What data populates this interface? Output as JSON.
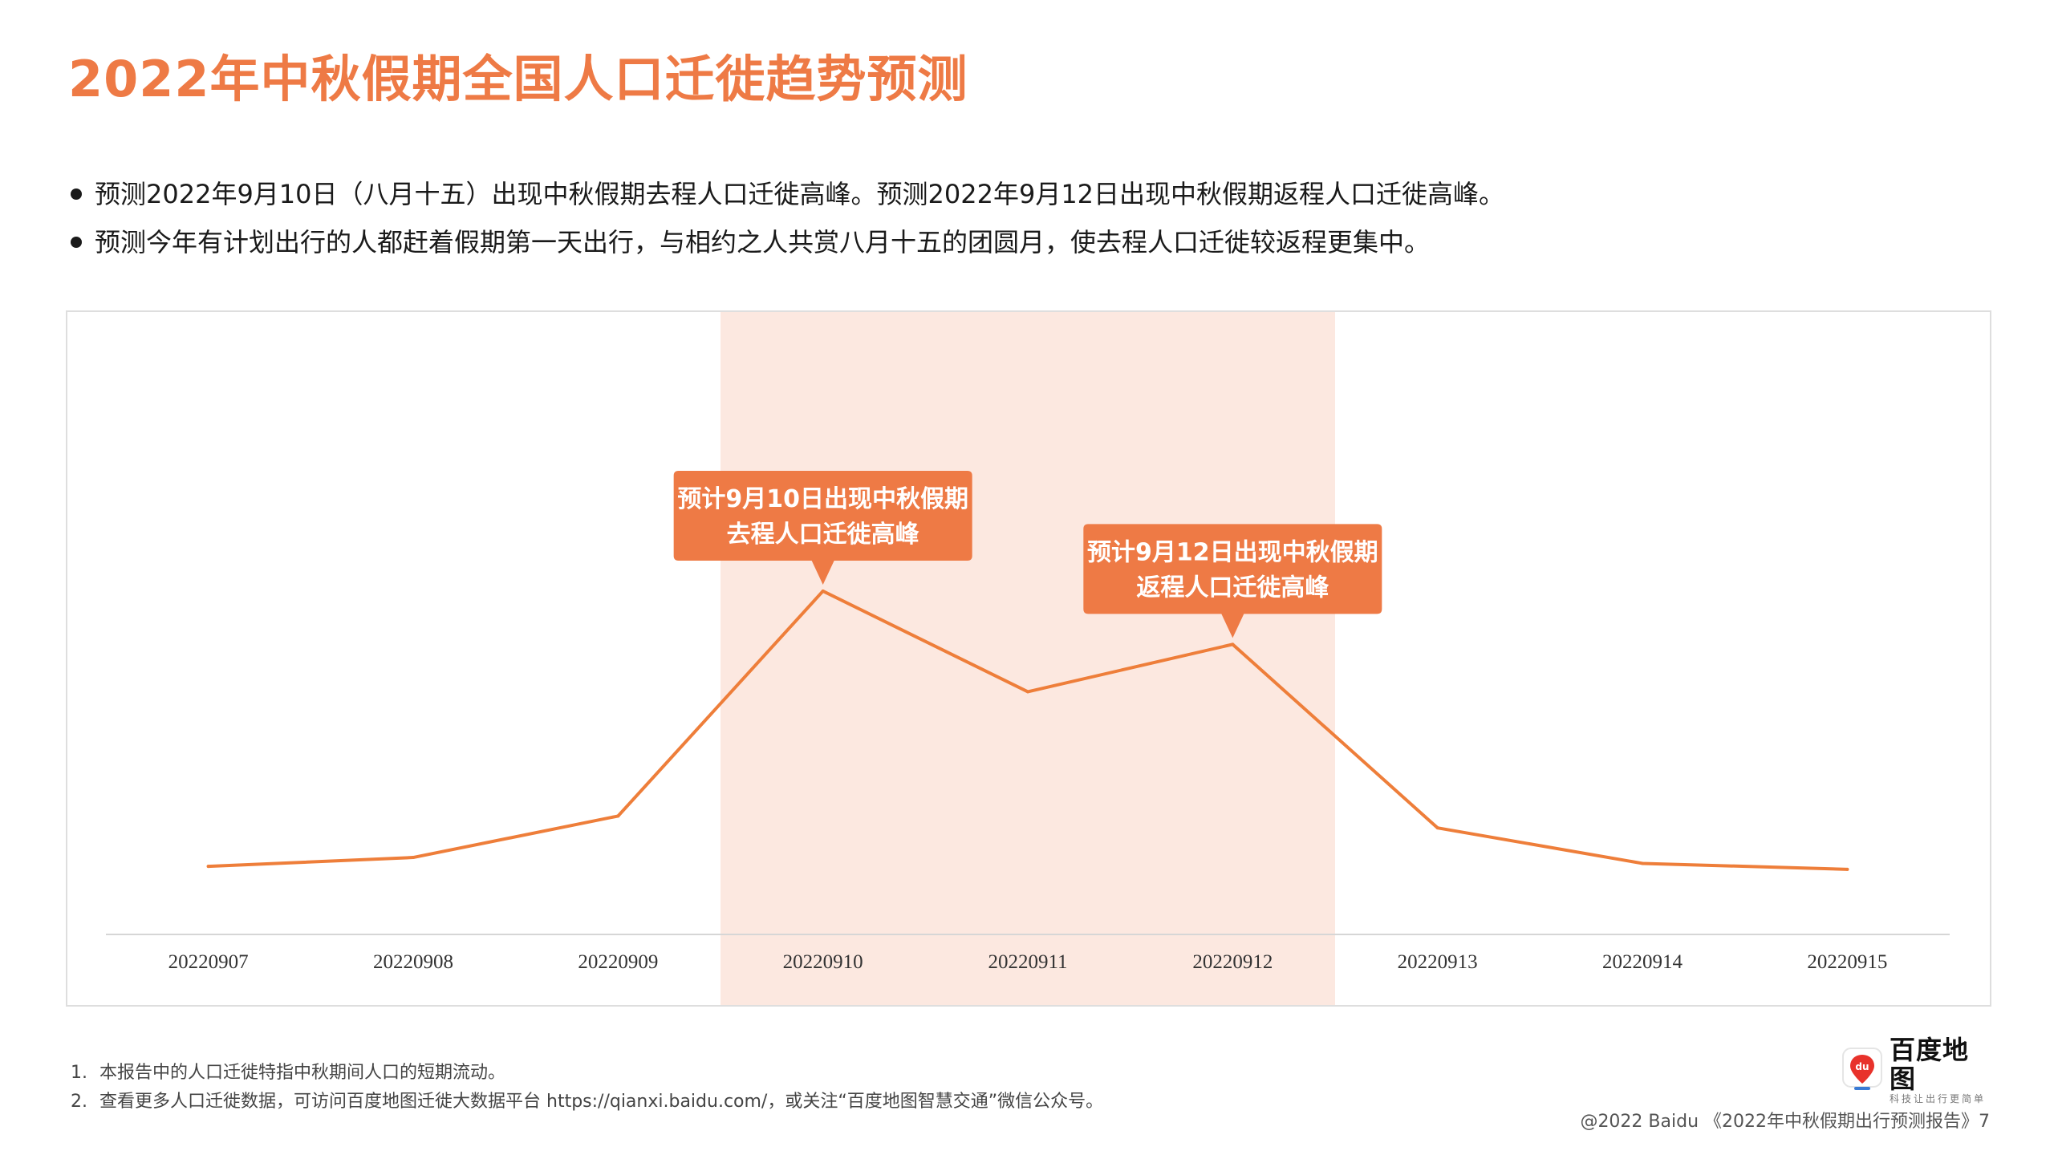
{
  "title": "2022年中秋假期全国人口迁徙趋势预测",
  "bullets": [
    "预测2022年9月10日（八月十五）出现中秋假期去程人口迁徙高峰。预测2022年9月12日出现中秋假期返程人口迁徙高峰。",
    "预测今年有计划出行的人都赶着假期第一天出行，与相约之人共赏八月十五的团圆月，使去程人口迁徙较返程更集中。"
  ],
  "chart_data": {
    "type": "line",
    "title": "",
    "xlabel": "",
    "ylabel": "",
    "x": [
      "20220907",
      "20220908",
      "20220909",
      "20220910",
      "20220911",
      "20220912",
      "20220913",
      "20220914",
      "20220915"
    ],
    "series": [
      {
        "values": [
          11.5,
          13.0,
          20.0,
          58.0,
          41.0,
          49.0,
          18.0,
          12.0,
          11.0
        ]
      }
    ],
    "ylim": [
      0,
      100
    ],
    "y_axis_visible": false,
    "grid": false,
    "legend": "none",
    "line_color": "#ee7e3a",
    "highlight_range": {
      "from": "20220910",
      "to": "20220912",
      "color": "#fce8e0"
    },
    "annotations": [
      {
        "x": "20220910",
        "lines": [
          "预计9月10日出现中秋假期",
          "去程人口迁徙高峰"
        ]
      },
      {
        "x": "20220912",
        "lines": [
          "预计9月12日出现中秋假期",
          "返程人口迁徙高峰"
        ]
      }
    ],
    "callout_color": "#ee7a45"
  },
  "footnotes": [
    {
      "num": "1.",
      "text": "本报告中的人口迁徙特指中秋期间人口的短期流动。"
    },
    {
      "num": "2.",
      "text": "查看更多人口迁徙数据，可访问百度地图迁徙大数据平台 https://qianxi.baidu.com/，或关注“百度地图智慧交通”微信公众号。"
    }
  ],
  "logo": {
    "name": "百度地图",
    "slogan": "科技让出行更简单",
    "pin_text": "du",
    "icon": "map-pin-icon"
  },
  "footer": "@2022 Baidu 《2022年中秋假期出行预测报告》7"
}
